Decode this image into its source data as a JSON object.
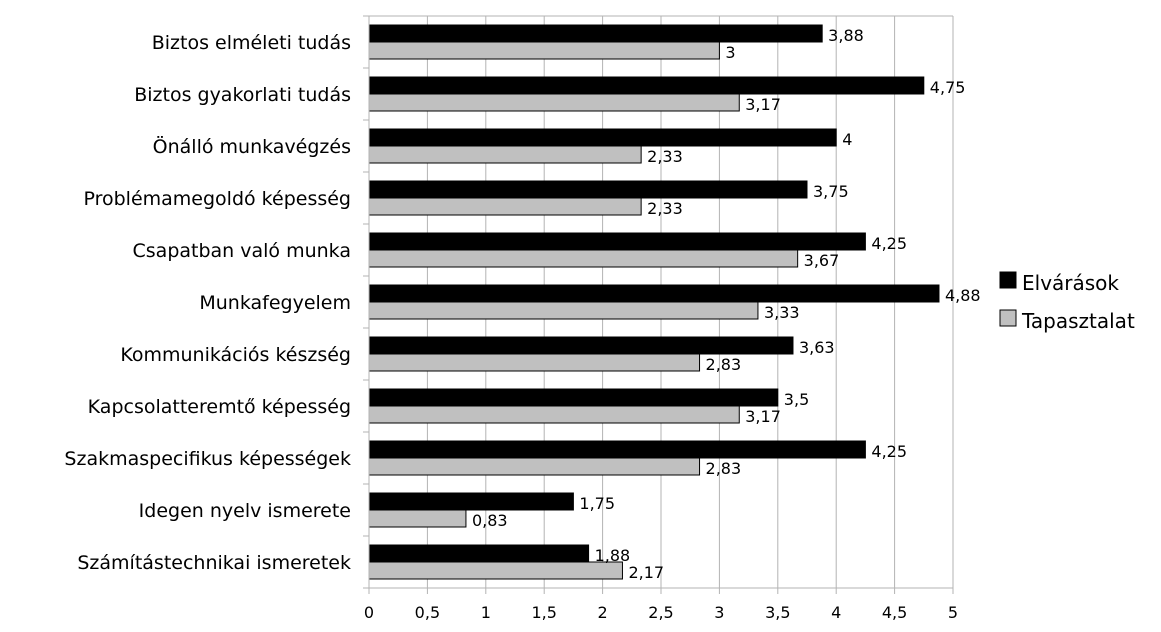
{
  "chart_data": {
    "type": "bar",
    "orientation": "horizontal",
    "categories": [
      "Biztos elméleti tudás",
      "Biztos gyakorlati tudás",
      "Önálló munkavégzés",
      "Problémamegoldó képesség",
      "Csapatban való munka",
      "Munkafegyelem",
      "Kommunikációs készség",
      "Kapcsolatteremtő képesség",
      "Szakmaspecifikus képességek",
      "Idegen nyelv ismerete",
      "Számítástechnikai ismeretek"
    ],
    "series": [
      {
        "name": "Elvárások",
        "color": "#000000",
        "values": [
          3.88,
          4.75,
          4,
          3.75,
          4.25,
          4.88,
          3.63,
          3.5,
          4.25,
          1.75,
          1.88
        ],
        "labels": [
          "3,88",
          "4,75",
          "4",
          "3,75",
          "4,25",
          "4,88",
          "3,63",
          "3,5",
          "4,25",
          "1,75",
          "1,88"
        ]
      },
      {
        "name": "Tapasztalat",
        "color": "#c0c0c0",
        "values": [
          3,
          3.17,
          2.33,
          2.33,
          3.67,
          3.33,
          2.83,
          3.17,
          2.83,
          0.83,
          2.17
        ],
        "labels": [
          "3",
          "3,17",
          "2,33",
          "2,33",
          "3,67",
          "3,33",
          "2,83",
          "3,17",
          "2,83",
          "0,83",
          "2,17"
        ]
      }
    ],
    "xlim": [
      0,
      5
    ],
    "ticks": [
      0,
      0.5,
      1,
      1.5,
      2,
      2.5,
      3,
      3.5,
      4,
      4.5,
      5
    ],
    "tick_labels": [
      "0",
      "0,5",
      "1",
      "1,5",
      "2",
      "2,5",
      "3",
      "3,5",
      "4",
      "4,5",
      "5"
    ],
    "grid": "vertical",
    "legend_position": "right"
  }
}
